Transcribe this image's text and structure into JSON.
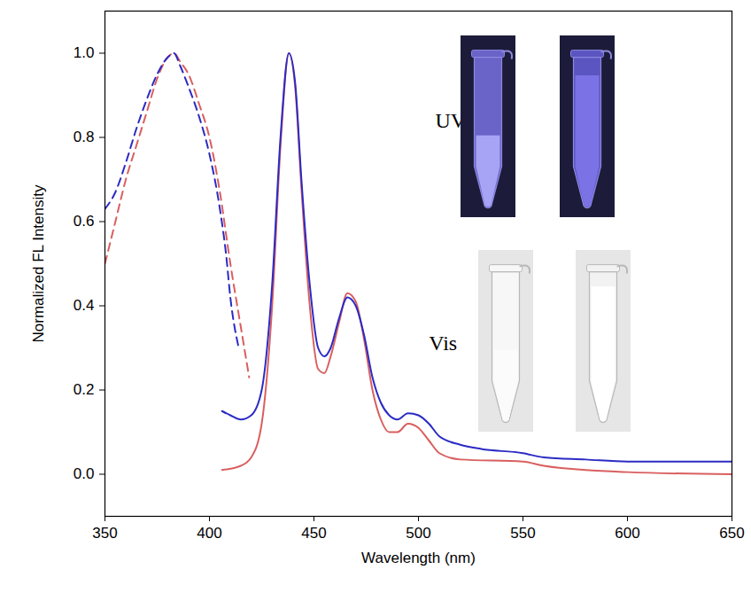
{
  "chart_data": {
    "type": "line",
    "x_label": "Wavelength (nm)",
    "y_label": "Normalized FL Intensity",
    "xlim": [
      350,
      650
    ],
    "xticks": [
      350,
      400,
      450,
      500,
      550,
      600,
      650
    ],
    "ylim": [
      -0.1,
      1.1
    ],
    "yticks": [
      {
        "value": 0,
        "label": "0.0"
      },
      0.2,
      0.4,
      0.6,
      0.8,
      {
        "value": 1,
        "label": "1.0"
      }
    ],
    "series": [
      {
        "color": "#d95f5f",
        "line_style": "dashed",
        "x": [
          350,
          355,
          360,
          365,
          370,
          375,
          380,
          383,
          386,
          390,
          395,
          400,
          405,
          410,
          415,
          419
        ],
        "values": [
          0.5,
          0.6,
          0.7,
          0.78,
          0.86,
          0.94,
          0.99,
          1.0,
          0.98,
          0.95,
          0.88,
          0.8,
          0.67,
          0.5,
          0.35,
          0.23
        ]
      },
      {
        "color": "#2b2bc4",
        "line_style": "dashed",
        "x": [
          350,
          355,
          360,
          365,
          370,
          375,
          380,
          383,
          386,
          390,
          395,
          400,
          405,
          408,
          410,
          414
        ],
        "values": [
          0.63,
          0.67,
          0.74,
          0.82,
          0.89,
          0.95,
          0.99,
          1.0,
          0.97,
          0.92,
          0.85,
          0.76,
          0.63,
          0.52,
          0.42,
          0.3
        ]
      },
      {
        "color": "#d95f5f",
        "line_style": "solid",
        "x": [
          406,
          415,
          420,
          425,
          430,
          434,
          438,
          441,
          444,
          448,
          452,
          455,
          458,
          462,
          466,
          470,
          474,
          478,
          482,
          486,
          490,
          495,
          500,
          505,
          510,
          520,
          550,
          560,
          580,
          600,
          650
        ],
        "values": [
          0.01,
          0.02,
          0.04,
          0.12,
          0.4,
          0.78,
          1.0,
          0.92,
          0.68,
          0.4,
          0.25,
          0.24,
          0.28,
          0.36,
          0.43,
          0.41,
          0.32,
          0.2,
          0.13,
          0.1,
          0.1,
          0.12,
          0.11,
          0.08,
          0.05,
          0.035,
          0.03,
          0.02,
          0.01,
          0.005,
          0.0
        ]
      },
      {
        "color": "#2b2bc4",
        "line_style": "solid",
        "x": [
          406,
          410,
          415,
          420,
          425,
          430,
          434,
          438,
          441,
          444,
          448,
          452,
          455,
          458,
          462,
          466,
          470,
          474,
          478,
          482,
          486,
          490,
          495,
          500,
          505,
          510,
          520,
          530,
          550,
          560,
          580,
          600,
          625,
          650
        ],
        "values": [
          0.15,
          0.14,
          0.13,
          0.14,
          0.2,
          0.45,
          0.8,
          1.0,
          0.93,
          0.7,
          0.45,
          0.3,
          0.28,
          0.3,
          0.37,
          0.42,
          0.4,
          0.33,
          0.23,
          0.17,
          0.14,
          0.13,
          0.145,
          0.14,
          0.12,
          0.09,
          0.07,
          0.06,
          0.05,
          0.04,
          0.035,
          0.03,
          0.03,
          0.03
        ]
      }
    ],
    "annotations": [
      {
        "text": "UV",
        "x": 508,
        "y": 0.84
      },
      {
        "text": "Vis",
        "x": 505,
        "y": 0.31
      }
    ]
  }
}
